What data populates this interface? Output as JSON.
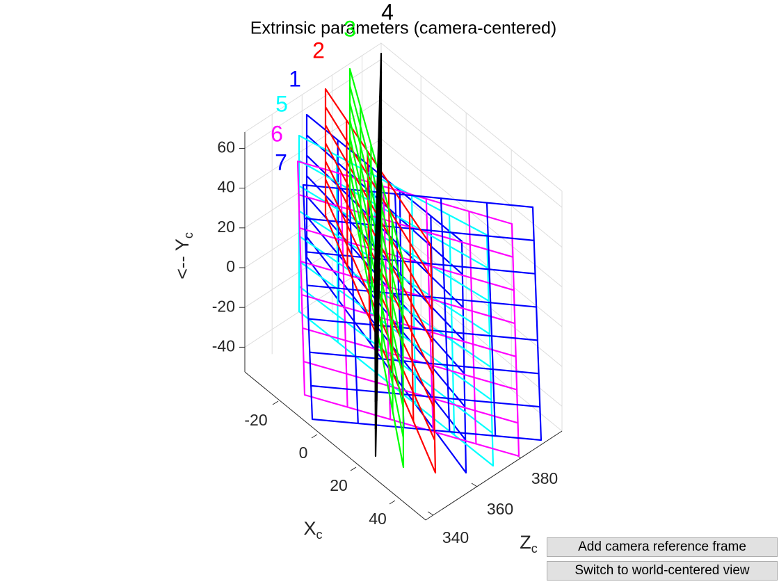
{
  "chart_data": {
    "type": "3d-line",
    "title": "Extrinsic parameters (camera-centered)",
    "axes": {
      "x": {
        "label": "X",
        "label_sub": "c",
        "ticks": [
          -20,
          0,
          20,
          40
        ]
      },
      "y": {
        "label": "<-- Y",
        "label_sub": "c",
        "ticks": [
          -40,
          -20,
          0,
          20,
          40,
          60
        ]
      },
      "z": {
        "label": "Z",
        "label_sub": "c",
        "ticks": [
          340,
          360,
          380
        ]
      }
    },
    "grid": true,
    "planes": [
      {
        "label": "1",
        "color": "#0000ff"
      },
      {
        "label": "2",
        "color": "#ff0000"
      },
      {
        "label": "3",
        "color": "#00ff00"
      },
      {
        "label": "4",
        "color": "#000000"
      },
      {
        "label": "5",
        "color": "#00ffff"
      },
      {
        "label": "6",
        "color": "#ff00ff"
      },
      {
        "label": "7",
        "color": "#0000ff"
      }
    ]
  },
  "buttons": {
    "add_frame": "Add camera reference frame",
    "switch_view": "Switch to world-centered view"
  }
}
